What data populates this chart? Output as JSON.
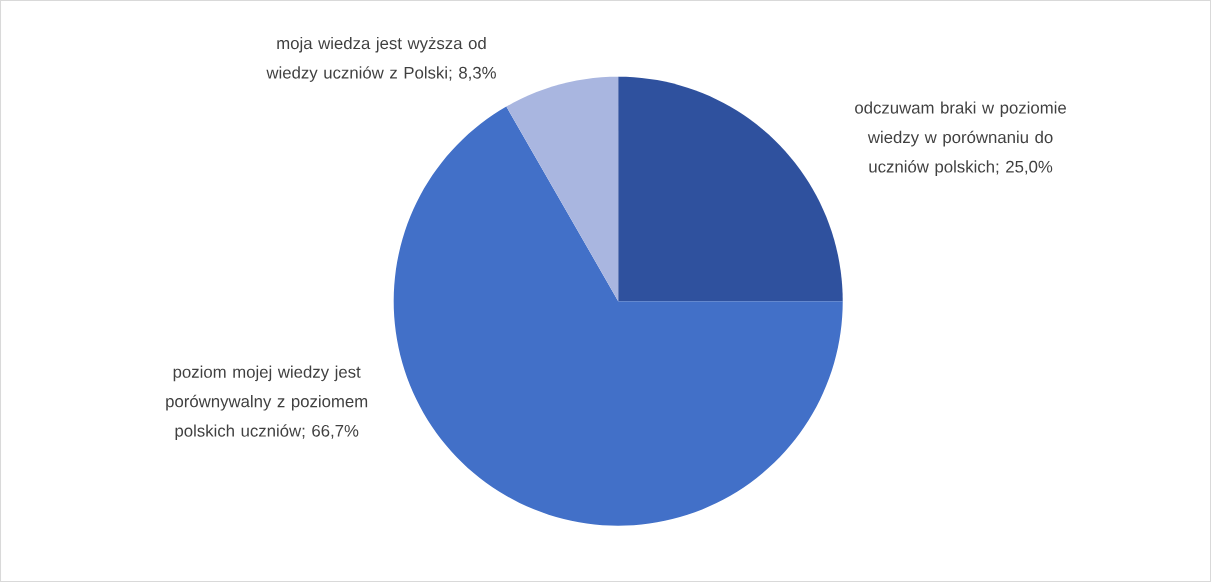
{
  "chart_data": {
    "type": "pie",
    "categories": [
      "odczuwam braki w poziomie wiedzy w porównaniu do uczniów polskich",
      "poziom mojej wiedzy jest porównywalny z poziomem polskich uczniów",
      "moja wiedza jest wyższa od wiedzy uczniów z Polski"
    ],
    "values": [
      25.0,
      66.7,
      8.3
    ],
    "value_labels": [
      "; 25,0%",
      "; 66,7%",
      "; 8,3%"
    ],
    "colors": [
      "#2f519e",
      "#4270c8",
      "#a9b6e0"
    ]
  }
}
